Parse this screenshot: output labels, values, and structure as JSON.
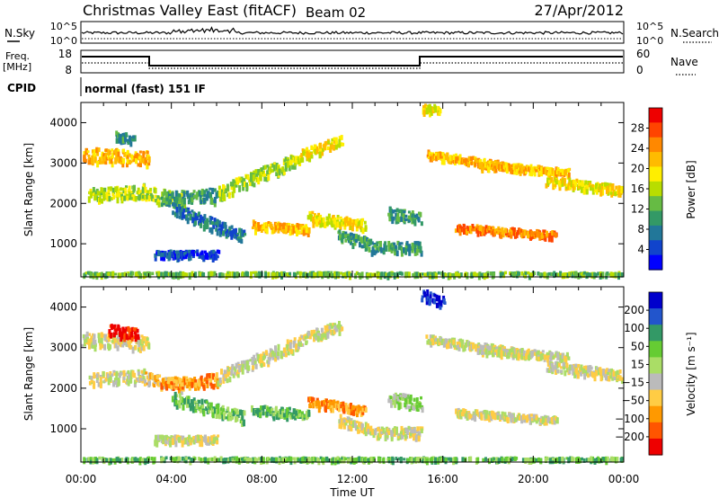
{
  "header": {
    "title": "Christmas Valley East (fitACF)",
    "beam": "Beam 02",
    "date": "27/Apr/2012"
  },
  "top_panels": {
    "nsky_label": "N.Sky",
    "nsearch_label": "N.Search",
    "nsky_ticks": [
      "10^5",
      "10^0"
    ],
    "freq_label_1": "Freq.",
    "freq_label_2": "[MHz]",
    "freq_ticks": [
      "18",
      "8"
    ],
    "nave_label": "Nave",
    "nave_ticks": [
      "60",
      "0"
    ],
    "cpid_label": "CPID",
    "cpid_text": "normal (fast) 151 IF"
  },
  "chart_data": [
    {
      "type": "heatmap",
      "name": "power",
      "ylabel": "Slant Range [km]",
      "yticks": [
        1000,
        2000,
        3000,
        4000
      ],
      "ylim": [
        180,
        4500
      ],
      "colorbar_label": "Power [dB]",
      "colorbar_ticks": [
        "28",
        "24",
        "20",
        "16",
        "12",
        "8",
        "4"
      ],
      "colorbar_colors": [
        "#ee0000",
        "#ff4400",
        "#ff8800",
        "#ffbb00",
        "#ffee00",
        "#b8dd00",
        "#66bb44",
        "#339966",
        "#227799",
        "#1144cc",
        "#0000ff"
      ],
      "bands": [
        {
          "h0": 0.0,
          "h1": 3.0,
          "r0": 3250,
          "r1": 3150,
          "w": 350,
          "lvl": 3
        },
        {
          "h0": 0.3,
          "h1": 2.8,
          "r0": 2250,
          "r1": 2350,
          "w": 320,
          "lvl": 5
        },
        {
          "h0": 1.5,
          "h1": 2.3,
          "r0": 3700,
          "r1": 3600,
          "w": 220,
          "lvl": 7
        },
        {
          "h0": 2.8,
          "h1": 4.5,
          "r0": 2300,
          "r1": 2100,
          "w": 350,
          "lvl": 5
        },
        {
          "h0": 3.5,
          "h1": 6.0,
          "r0": 2150,
          "r1": 2250,
          "w": 320,
          "lvl": 7
        },
        {
          "h0": 6.0,
          "h1": 9.5,
          "r0": 2300,
          "r1": 3150,
          "w": 320,
          "lvl": 5
        },
        {
          "h0": 9.5,
          "h1": 11.5,
          "r0": 3200,
          "r1": 3600,
          "w": 250,
          "lvl": 4
        },
        {
          "h0": 4.0,
          "h1": 7.2,
          "r0": 1900,
          "r1": 1200,
          "w": 280,
          "lvl": 8
        },
        {
          "h0": 3.2,
          "h1": 6.0,
          "r0": 780,
          "r1": 780,
          "w": 160,
          "lvl": 9
        },
        {
          "h0": 7.5,
          "h1": 10.0,
          "r0": 1500,
          "r1": 1400,
          "w": 220,
          "lvl": 3
        },
        {
          "h0": 10.0,
          "h1": 12.5,
          "r0": 1700,
          "r1": 1500,
          "w": 250,
          "lvl": 4
        },
        {
          "h0": 11.3,
          "h1": 12.8,
          "r0": 1250,
          "r1": 1000,
          "w": 260,
          "lvl": 7
        },
        {
          "h0": 12.8,
          "h1": 15.0,
          "r0": 950,
          "r1": 950,
          "w": 250,
          "lvl": 7
        },
        {
          "h0": 13.5,
          "h1": 15.0,
          "r0": 1800,
          "r1": 1650,
          "w": 300,
          "lvl": 7
        },
        {
          "h0": 15.0,
          "h1": 15.8,
          "r0": 4400,
          "r1": 4350,
          "w": 200,
          "lvl": 4
        },
        {
          "h0": 15.2,
          "h1": 19.5,
          "r0": 3250,
          "r1": 2900,
          "w": 180,
          "lvl": 3
        },
        {
          "h0": 17.5,
          "h1": 21.5,
          "r0": 3000,
          "r1": 2800,
          "w": 180,
          "lvl": 3
        },
        {
          "h0": 20.5,
          "h1": 24.0,
          "r0": 2600,
          "r1": 2350,
          "w": 220,
          "lvl": 4
        },
        {
          "h0": 16.5,
          "h1": 21.0,
          "r0": 1450,
          "r1": 1250,
          "w": 150,
          "lvl": 2
        },
        {
          "h0": 0.0,
          "h1": 24.0,
          "r0": 260,
          "r1": 260,
          "w": 130,
          "lvl": 6
        }
      ]
    },
    {
      "type": "heatmap",
      "name": "velocity",
      "xlabel": "Time UT",
      "xticks": [
        "00:00",
        "04:00",
        "08:00",
        "12:00",
        "16:00",
        "20:00",
        "00:00"
      ],
      "ylabel": "Slant Range [km]",
      "yticks": [
        1000,
        2000,
        3000,
        4000
      ],
      "ylim": [
        180,
        4500
      ],
      "colorbar_label": "Velocity [m s⁻¹]",
      "colorbar_ticks": [
        "200",
        "100",
        "50",
        "15",
        "−15",
        "−50",
        "−100",
        "−200"
      ],
      "colorbar_colors": [
        "#0000cc",
        "#2255cc",
        "#339966",
        "#66cc33",
        "#aadd66",
        "#bbbbbb",
        "#ffcc44",
        "#ff9900",
        "#ff5500",
        "#ee0000"
      ],
      "bands": [
        {
          "h0": 0.0,
          "h1": 3.0,
          "r0": 3250,
          "r1": 3150,
          "w": 350,
          "lvl": 5
        },
        {
          "h0": 0.3,
          "h1": 2.8,
          "r0": 2250,
          "r1": 2350,
          "w": 320,
          "lvl": 5
        },
        {
          "h0": 1.2,
          "h1": 2.5,
          "r0": 3500,
          "r1": 3350,
          "w": 250,
          "lvl": 9
        },
        {
          "h0": 2.8,
          "h1": 4.5,
          "r0": 2300,
          "r1": 2100,
          "w": 300,
          "lvl": 6
        },
        {
          "h0": 3.5,
          "h1": 6.0,
          "r0": 2150,
          "r1": 2250,
          "w": 300,
          "lvl": 7
        },
        {
          "h0": 6.0,
          "h1": 9.5,
          "r0": 2300,
          "r1": 3150,
          "w": 320,
          "lvl": 5
        },
        {
          "h0": 9.5,
          "h1": 11.5,
          "r0": 3200,
          "r1": 3600,
          "w": 250,
          "lvl": 5
        },
        {
          "h0": 4.0,
          "h1": 7.2,
          "r0": 1800,
          "r1": 1300,
          "w": 300,
          "lvl": 3
        },
        {
          "h0": 3.2,
          "h1": 6.0,
          "r0": 780,
          "r1": 780,
          "w": 160,
          "lvl": 5
        },
        {
          "h0": 7.5,
          "h1": 10.0,
          "r0": 1500,
          "r1": 1400,
          "w": 220,
          "lvl": 3
        },
        {
          "h0": 10.0,
          "h1": 12.5,
          "r0": 1700,
          "r1": 1500,
          "w": 220,
          "lvl": 7
        },
        {
          "h0": 11.3,
          "h1": 12.8,
          "r0": 1250,
          "r1": 1000,
          "w": 260,
          "lvl": 5
        },
        {
          "h0": 12.8,
          "h1": 15.0,
          "r0": 950,
          "r1": 950,
          "w": 250,
          "lvl": 5
        },
        {
          "h0": 13.5,
          "h1": 15.0,
          "r0": 1800,
          "r1": 1650,
          "w": 300,
          "lvl": 4
        },
        {
          "h0": 15.0,
          "h1": 16.0,
          "r0": 4350,
          "r1": 4150,
          "w": 260,
          "lvl": 0
        },
        {
          "h0": 15.2,
          "h1": 19.5,
          "r0": 3250,
          "r1": 2900,
          "w": 180,
          "lvl": 5
        },
        {
          "h0": 17.5,
          "h1": 21.5,
          "r0": 3000,
          "r1": 2800,
          "w": 180,
          "lvl": 5
        },
        {
          "h0": 20.5,
          "h1": 24.0,
          "r0": 2600,
          "r1": 2350,
          "w": 220,
          "lvl": 5
        },
        {
          "h0": 16.5,
          "h1": 21.0,
          "r0": 1450,
          "r1": 1250,
          "w": 150,
          "lvl": 5
        },
        {
          "h0": 0.0,
          "h1": 24.0,
          "r0": 260,
          "r1": 260,
          "w": 130,
          "lvl": 3
        }
      ]
    }
  ]
}
